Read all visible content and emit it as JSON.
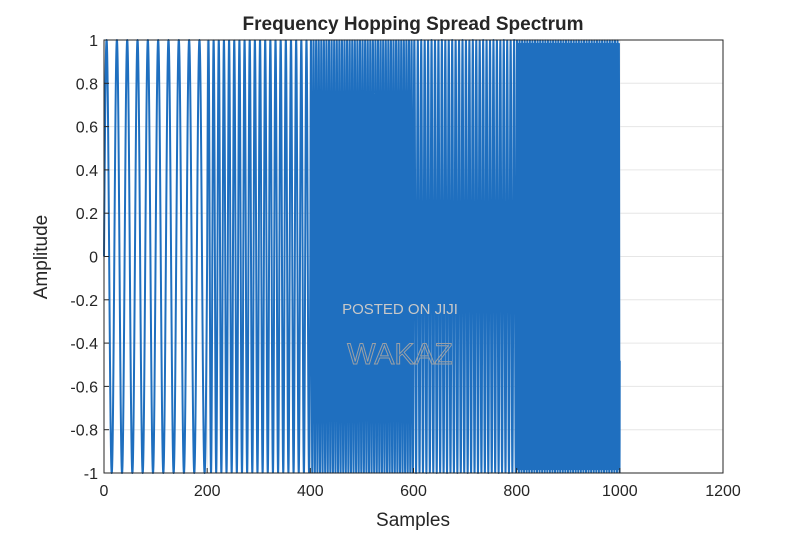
{
  "chart_data": {
    "type": "line",
    "title": "Frequency Hopping Spread Spectrum",
    "xlabel": "Samples",
    "ylabel": "Amplitude",
    "xlim": [
      0,
      1200
    ],
    "ylim": [
      -1,
      1
    ],
    "xticks": [
      "0",
      "200",
      "400",
      "600",
      "800",
      "1000",
      "1200"
    ],
    "yticks": [
      "1",
      "0.8",
      "0.6",
      "0.4",
      "0.2",
      "0",
      "-0.2",
      "-0.4",
      "-0.6",
      "-0.8",
      "-1"
    ],
    "grid": true,
    "color": "#1f6fbf",
    "hops": [
      {
        "start": 0,
        "end": 200,
        "cycles_per_sample": 0.05
      },
      {
        "start": 200,
        "end": 400,
        "cycles_per_sample": 0.1
      },
      {
        "start": 400,
        "end": 600,
        "cycles_per_sample": 0.2
      },
      {
        "start": 600,
        "end": 800,
        "cycles_per_sample": 0.15
      },
      {
        "start": 800,
        "end": 1000,
        "cycles_per_sample": 0.4
      }
    ]
  },
  "watermark": {
    "line1": "POSTED ON JIJI",
    "line2": "WAKAZ"
  }
}
